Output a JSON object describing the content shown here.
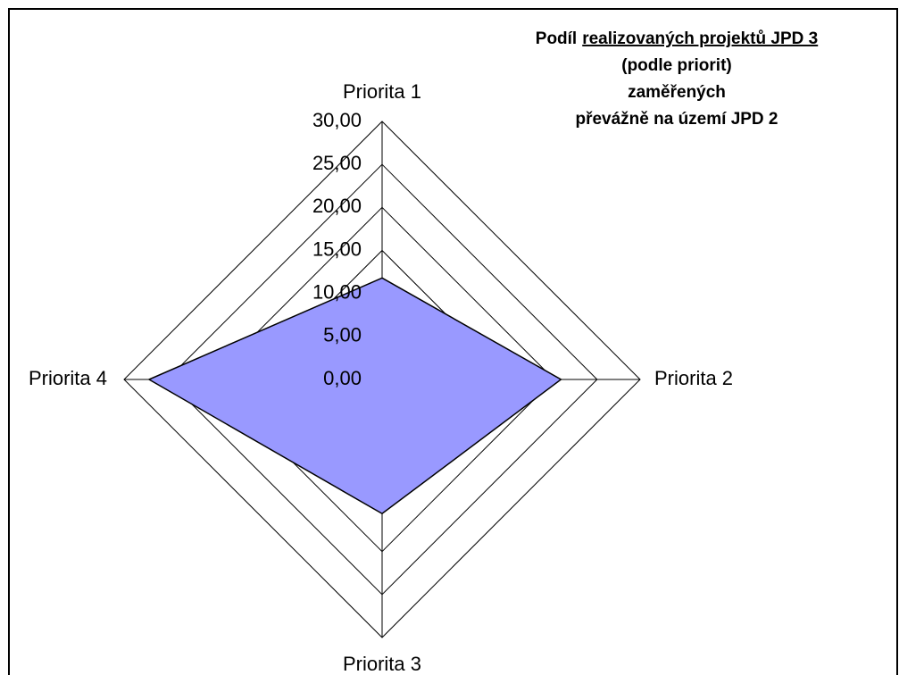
{
  "chart_data": {
    "type": "radar",
    "title": [
      [
        "Podíl",
        "realizovaných projektů JPD 3"
      ],
      [
        "(podle priorit)"
      ],
      [
        "zaměřených"
      ],
      [
        "převážně na území JPD 2"
      ]
    ],
    "categories": [
      "Priorita 1",
      "Priorita 2",
      "Priorita 3",
      "Priorita 4"
    ],
    "values": [
      11.8,
      20.8,
      15.6,
      27.1
    ],
    "color": "#9999ff",
    "ylim": [
      0,
      30
    ],
    "yticks": [
      {
        "value": 0,
        "label": "0,00"
      },
      {
        "value": 5,
        "label": "5,00"
      },
      {
        "value": 10,
        "label": "10,00"
      },
      {
        "value": 15,
        "label": "15,00"
      },
      {
        "value": 20,
        "label": "20,00"
      },
      {
        "value": 25,
        "label": "25,00"
      },
      {
        "value": 30,
        "label": "30,00"
      }
    ],
    "grid": true
  }
}
